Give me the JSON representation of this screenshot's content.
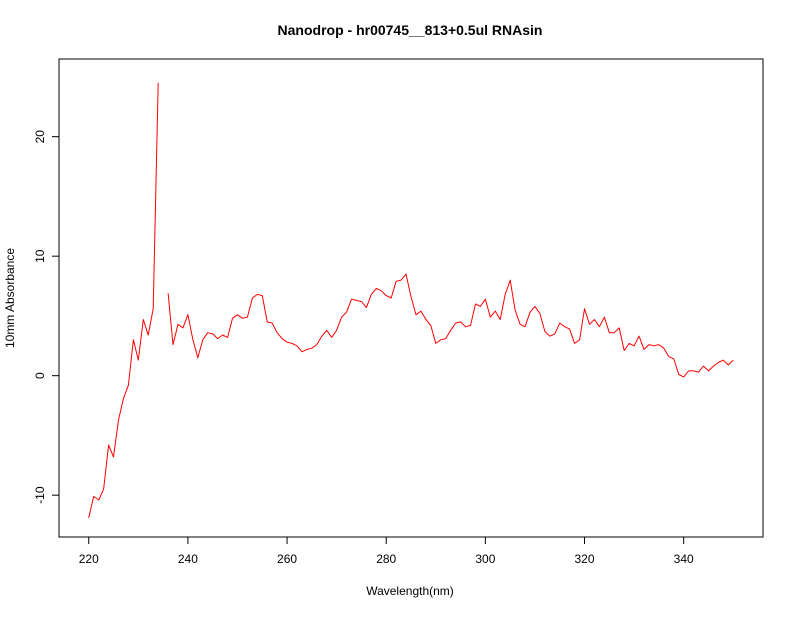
{
  "chart_data": {
    "type": "line",
    "title": "Nanodrop - hr00745__813+0.5ul RNAsin",
    "xlabel": "Wavelength(nm)",
    "ylabel": "10mm Absorbance",
    "xlim": [
      214,
      356
    ],
    "ylim": [
      -13.5,
      26.5
    ],
    "xticks": [
      220,
      240,
      260,
      280,
      300,
      320,
      340
    ],
    "yticks": [
      -10,
      0,
      10,
      20
    ],
    "grid": false,
    "legend": "none",
    "series": [
      {
        "color": "#ff0000",
        "segments": [
          {
            "x": [
              220,
              221,
              222,
              223,
              224,
              225,
              226,
              227,
              228,
              229,
              230,
              231,
              232,
              233,
              234
            ],
            "y": [
              -11.9,
              -10.1,
              -10.4,
              -9.5,
              -5.8,
              -6.8,
              -3.7,
              -1.9,
              -0.8,
              3.0,
              1.3,
              4.7,
              3.4,
              5.6,
              24.5
            ]
          },
          {
            "x": [
              236,
              237,
              238,
              239,
              240,
              241,
              242,
              243,
              244,
              245,
              246,
              247,
              248,
              249,
              250,
              251,
              252,
              253,
              254,
              255,
              256,
              257,
              258,
              259,
              260,
              261,
              262,
              263,
              264,
              265,
              266,
              267,
              268,
              269,
              270,
              271,
              272,
              273,
              274,
              275,
              276,
              277,
              278,
              279,
              280,
              281,
              282,
              283,
              284,
              285,
              286,
              287,
              288,
              289,
              290,
              291,
              292,
              293,
              294,
              295,
              296,
              297,
              298,
              299,
              300,
              301,
              302,
              303,
              304,
              305,
              306,
              307,
              308,
              309,
              310,
              311,
              312,
              313,
              314,
              315,
              316,
              317,
              318,
              319,
              320,
              321,
              322,
              323,
              324,
              325,
              326,
              327,
              328,
              329,
              330,
              331,
              332,
              333,
              334,
              335,
              336,
              337,
              338,
              339,
              340,
              341,
              342,
              343,
              344,
              345,
              346,
              347,
              348,
              349,
              350
            ],
            "y": [
              6.9,
              2.6,
              4.3,
              4.0,
              5.1,
              3.0,
              1.5,
              3.0,
              3.6,
              3.5,
              3.1,
              3.4,
              3.2,
              4.8,
              5.1,
              4.8,
              4.9,
              6.5,
              6.8,
              6.7,
              4.5,
              4.4,
              3.6,
              3.1,
              2.8,
              2.7,
              2.5,
              2.0,
              2.2,
              2.3,
              2.6,
              3.3,
              3.8,
              3.2,
              3.8,
              4.9,
              5.3,
              6.4,
              6.3,
              6.2,
              5.7,
              6.8,
              7.3,
              7.1,
              6.7,
              6.5,
              7.9,
              8.0,
              8.5,
              6.6,
              5.1,
              5.4,
              4.7,
              4.2,
              2.7,
              3.0,
              3.1,
              3.8,
              4.4,
              4.5,
              4.1,
              4.2,
              6.0,
              5.8,
              6.4,
              4.9,
              5.4,
              4.7,
              6.8,
              8.0,
              5.5,
              4.3,
              4.1,
              5.3,
              5.8,
              5.2,
              3.7,
              3.3,
              3.5,
              4.4,
              4.1,
              3.9,
              2.7,
              3.0,
              5.6,
              4.3,
              4.7,
              4.1,
              4.9,
              3.6,
              3.6,
              4.0,
              2.1,
              2.7,
              2.5,
              3.3,
              2.2,
              2.6,
              2.5,
              2.6,
              2.3,
              1.6,
              1.4,
              0.1,
              -0.1,
              0.4,
              0.4,
              0.3,
              0.8,
              0.4,
              0.8,
              1.1,
              1.3,
              0.9,
              1.3
            ]
          }
        ]
      }
    ]
  }
}
